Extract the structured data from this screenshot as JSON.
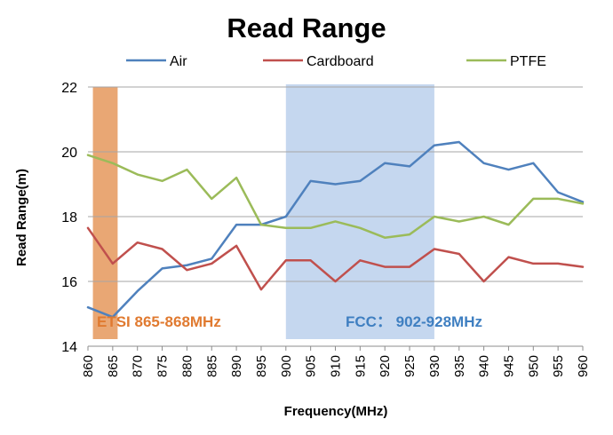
{
  "chart_data": {
    "type": "line",
    "title": "Read Range",
    "xlabel": "Frequency(MHz)",
    "ylabel": "Read Range(m)",
    "ylim": [
      14,
      22
    ],
    "yticks": [
      "14",
      "16",
      "18",
      "20",
      "22"
    ],
    "grid": "horizontal",
    "legend": "top",
    "x": [
      860,
      865,
      870,
      875,
      880,
      885,
      890,
      895,
      900,
      905,
      910,
      915,
      920,
      925,
      930,
      935,
      940,
      945,
      950,
      955,
      960
    ],
    "x_labels": [
      "860",
      "865",
      "870",
      "875",
      "880",
      "885",
      "890",
      "895",
      "900",
      "905",
      "910",
      "915",
      "920",
      "925",
      "930",
      "935",
      "940",
      "945",
      "950",
      "955",
      "960"
    ],
    "series": [
      {
        "name": "Air",
        "color": "#4F81BD",
        "values": [
          15.2,
          14.9,
          15.7,
          16.4,
          16.5,
          16.7,
          17.75,
          17.75,
          18.0,
          19.1,
          19.0,
          19.1,
          19.65,
          19.55,
          20.2,
          20.3,
          19.65,
          19.45,
          19.65,
          18.75,
          18.45
        ]
      },
      {
        "name": "Cardboard",
        "color": "#C0504D",
        "values": [
          17.65,
          16.55,
          17.2,
          17.0,
          16.35,
          16.55,
          17.1,
          15.75,
          16.65,
          16.65,
          16.0,
          16.65,
          16.45,
          16.45,
          17.0,
          16.85,
          16.0,
          16.75,
          16.55,
          16.55,
          16.45
        ]
      },
      {
        "name": "PTFE",
        "color": "#9BBB59",
        "values": [
          19.9,
          19.65,
          19.3,
          19.1,
          19.45,
          18.55,
          19.2,
          17.75,
          17.65,
          17.65,
          17.85,
          17.65,
          17.35,
          17.45,
          18.0,
          17.85,
          18.0,
          17.75,
          18.55,
          18.55,
          18.4
        ]
      }
    ],
    "bands": [
      {
        "label": "ETSI 865-868MHz",
        "from": 861,
        "to": 866,
        "fill": "#E9A774",
        "text_color": "#E07A30"
      },
      {
        "label": "FCC： 902-928MHz",
        "from": 900,
        "to": 930,
        "fill": "#C5D7EF",
        "text_color": "#3F7FC1"
      }
    ]
  }
}
